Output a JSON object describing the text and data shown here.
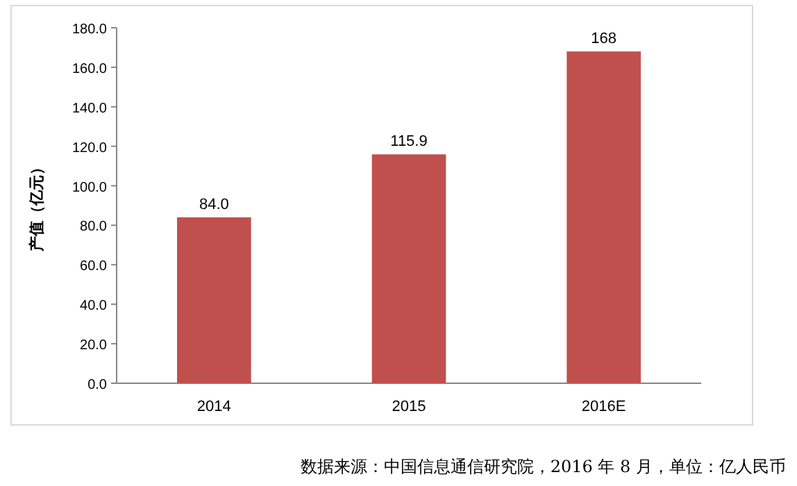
{
  "chart_data": {
    "type": "bar",
    "ylabel": "产值（亿元）",
    "categories": [
      "2014",
      "2015",
      "2016E"
    ],
    "values": [
      84.0,
      115.9,
      168
    ],
    "value_labels": [
      "84.0",
      "115.9",
      "168"
    ],
    "color": "#c0504d",
    "ylim": [
      0,
      180
    ],
    "yticks": [
      {
        "value": 0,
        "label": "0.0"
      },
      {
        "value": 20,
        "label": "20.0"
      },
      {
        "value": 40,
        "label": "40.0"
      },
      {
        "value": 60,
        "label": "60.0"
      },
      {
        "value": 80,
        "label": "80.0"
      },
      {
        "value": 100,
        "label": "100.0"
      },
      {
        "value": 120,
        "label": "120.0"
      },
      {
        "value": 140,
        "label": "140.0"
      },
      {
        "value": 160,
        "label": "160.0"
      },
      {
        "value": 180,
        "label": "180.0"
      }
    ],
    "grid": false,
    "annotations": [
      "数据来源：中国信息通信研究院，2016 年 8 月，单位：亿人民币"
    ]
  }
}
